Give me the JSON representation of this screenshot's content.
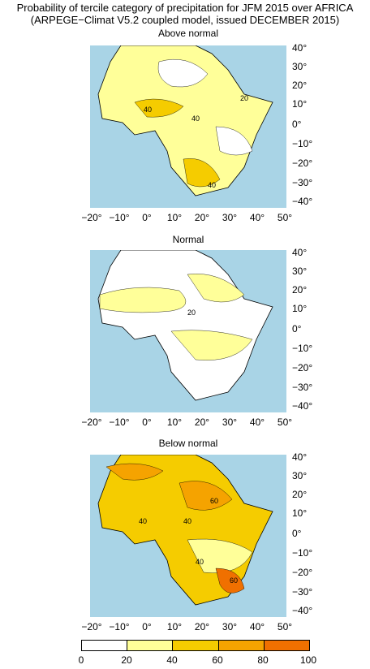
{
  "header": {
    "title_line1": "Probability of tercile category of precipitation for JFM 2015 over AFRICA",
    "title_line2": "(ARPEGE−Climat V5.2 coupled model, issued DECEMBER 2015)"
  },
  "panels": [
    {
      "title": "Above normal",
      "contour_labels": [
        "40",
        "40",
        "40",
        "20",
        "40"
      ]
    },
    {
      "title": "Normal",
      "contour_labels": [
        "20"
      ]
    },
    {
      "title": "Below normal",
      "contour_labels": [
        "40",
        "40",
        "60",
        "40",
        "60"
      ]
    }
  ],
  "axes": {
    "x_ticks": [
      "−20°",
      "−10°",
      "0°",
      "10°",
      "20°",
      "30°",
      "40°",
      "50°"
    ],
    "y_ticks": [
      "40°",
      "30°",
      "20°",
      "10°",
      "0°",
      "−10°",
      "−20°",
      "−30°",
      "−40°"
    ]
  },
  "legend": {
    "ticks": [
      "0",
      "20",
      "40",
      "60",
      "80",
      "100"
    ],
    "colors": [
      "#ffffff",
      "#ffff99",
      "#f5cc00",
      "#f5a300",
      "#f07000"
    ]
  },
  "colors": {
    "ocean": "#a9d4e6",
    "land": "#ffffff"
  }
}
